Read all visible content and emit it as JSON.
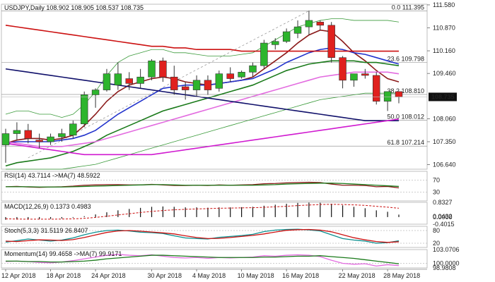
{
  "chart_data": [
    {
      "panel": "price",
      "type": "candlestick",
      "title": "USDJPY,Daily  108.902 108.905 108.537 108.735",
      "y_ticks": [
        "111.580",
        "110.870",
        "110.160",
        "109.460",
        "108.735",
        "108.060",
        "107.350",
        "106.640"
      ],
      "ylim": [
        106.5,
        111.6
      ],
      "current_price_label": "108.735",
      "current_price": 108.735,
      "fib_levels": [
        {
          "label": "0.0 111.395",
          "value": 111.395
        },
        {
          "label": "23.6 109.798",
          "value": 109.798
        },
        {
          "label": "38.2 108.810",
          "value": 108.81
        },
        {
          "label": "50.0 108.012",
          "value": 108.012
        },
        {
          "label": "61.8 107.214",
          "value": 107.214
        }
      ],
      "x_labels": [
        "12 Apr 2018",
        "18 Apr 2018",
        "24 Apr 2018",
        "30 Apr 2018",
        "4 May 2018",
        "10 May 2018",
        "16 May 2018",
        "22 May 2018",
        "28 May 2018"
      ],
      "candles": [
        {
          "o": 107.25,
          "h": 107.75,
          "l": 106.7,
          "c": 107.6
        },
        {
          "o": 107.6,
          "h": 107.95,
          "l": 107.4,
          "c": 107.7
        },
        {
          "o": 107.7,
          "h": 107.9,
          "l": 107.3,
          "c": 107.45
        },
        {
          "o": 107.4,
          "h": 107.6,
          "l": 107.15,
          "c": 107.35
        },
        {
          "o": 107.35,
          "h": 107.6,
          "l": 107.25,
          "c": 107.5
        },
        {
          "o": 107.5,
          "h": 107.75,
          "l": 107.35,
          "c": 107.6
        },
        {
          "o": 107.55,
          "h": 108.0,
          "l": 107.45,
          "c": 107.9
        },
        {
          "o": 107.9,
          "h": 108.9,
          "l": 107.8,
          "c": 108.8
        },
        {
          "o": 108.8,
          "h": 109.0,
          "l": 108.4,
          "c": 108.95
        },
        {
          "o": 108.95,
          "h": 109.6,
          "l": 108.9,
          "c": 109.45
        },
        {
          "o": 109.1,
          "h": 109.8,
          "l": 108.95,
          "c": 109.45
        },
        {
          "o": 109.3,
          "h": 109.5,
          "l": 108.95,
          "c": 109.15
        },
        {
          "o": 109.15,
          "h": 109.6,
          "l": 109.0,
          "c": 109.35
        },
        {
          "o": 109.35,
          "h": 109.9,
          "l": 109.25,
          "c": 109.85
        },
        {
          "o": 109.85,
          "h": 109.95,
          "l": 109.2,
          "c": 109.35
        },
        {
          "o": 109.35,
          "h": 109.7,
          "l": 108.8,
          "c": 108.95
        },
        {
          "o": 109.05,
          "h": 109.2,
          "l": 108.65,
          "c": 108.95
        },
        {
          "o": 108.95,
          "h": 109.4,
          "l": 108.75,
          "c": 109.25
        },
        {
          "o": 109.25,
          "h": 109.4,
          "l": 108.8,
          "c": 108.95
        },
        {
          "o": 109.0,
          "h": 109.55,
          "l": 108.9,
          "c": 109.45
        },
        {
          "o": 109.45,
          "h": 109.65,
          "l": 109.2,
          "c": 109.3
        },
        {
          "o": 109.35,
          "h": 109.55,
          "l": 109.3,
          "c": 109.5
        },
        {
          "o": 109.5,
          "h": 109.8,
          "l": 109.35,
          "c": 109.7
        },
        {
          "o": 109.7,
          "h": 110.5,
          "l": 109.6,
          "c": 110.4
        },
        {
          "o": 110.35,
          "h": 110.55,
          "l": 110.2,
          "c": 110.45
        },
        {
          "o": 110.45,
          "h": 110.85,
          "l": 110.4,
          "c": 110.75
        },
        {
          "o": 110.7,
          "h": 111.1,
          "l": 110.55,
          "c": 110.9
        },
        {
          "o": 110.9,
          "h": 111.4,
          "l": 110.65,
          "c": 111.1
        },
        {
          "o": 111.05,
          "h": 111.1,
          "l": 110.8,
          "c": 110.95
        },
        {
          "o": 110.95,
          "h": 111.05,
          "l": 109.8,
          "c": 109.95
        },
        {
          "o": 109.95,
          "h": 110.0,
          "l": 109.0,
          "c": 109.25
        },
        {
          "o": 109.25,
          "h": 109.45,
          "l": 109.05,
          "c": 109.45
        },
        {
          "o": 109.45,
          "h": 109.6,
          "l": 109.3,
          "c": 109.4
        },
        {
          "o": 109.4,
          "h": 109.5,
          "l": 108.5,
          "c": 108.6
        },
        {
          "o": 108.6,
          "h": 108.9,
          "l": 108.3,
          "c": 108.9
        },
        {
          "o": 108.9,
          "h": 108.905,
          "l": 108.537,
          "c": 108.735
        }
      ],
      "moving_averages": [
        {
          "color": "#8b1a1a",
          "values": [
            107.3,
            107.4,
            107.45,
            107.45,
            107.4,
            107.45,
            107.55,
            107.85,
            108.2,
            108.6,
            108.9,
            109.1,
            109.2,
            109.3,
            109.35,
            109.3,
            109.2,
            109.15,
            109.1,
            109.15,
            109.2,
            109.25,
            109.35,
            109.6,
            109.85,
            110.1,
            110.4,
            110.65,
            110.8,
            110.75,
            110.45,
            110.1,
            109.85,
            109.55,
            109.3,
            109.2
          ]
        },
        {
          "color": "#2233cc",
          "values": [
            107.3,
            107.35,
            107.35,
            107.35,
            107.35,
            107.4,
            107.45,
            107.55,
            107.7,
            107.95,
            108.2,
            108.4,
            108.6,
            108.8,
            109.0,
            109.05,
            109.1,
            109.1,
            109.1,
            109.15,
            109.2,
            109.25,
            109.3,
            109.45,
            109.6,
            109.8,
            109.95,
            110.1,
            110.2,
            110.25,
            110.2,
            110.1,
            110.05,
            109.95,
            109.85,
            109.75
          ]
        },
        {
          "color": "#1a7a1a",
          "values": [
            106.6,
            106.7,
            106.75,
            106.8,
            106.85,
            106.95,
            107.05,
            107.2,
            107.35,
            107.55,
            107.7,
            107.85,
            108.0,
            108.15,
            108.3,
            108.4,
            108.5,
            108.6,
            108.7,
            108.8,
            108.9,
            109.0,
            109.1,
            109.25,
            109.4,
            109.55,
            109.65,
            109.75,
            109.8,
            109.85,
            109.85,
            109.85,
            109.8,
            109.8,
            109.75,
            109.7
          ]
        },
        {
          "color": "#e36ce0",
          "values": [
            107.35,
            107.3,
            107.25,
            107.2,
            107.2,
            107.2,
            107.25,
            107.3,
            107.35,
            107.45,
            107.55,
            107.65,
            107.75,
            107.85,
            107.95,
            108.05,
            108.15,
            108.25,
            108.35,
            108.45,
            108.55,
            108.65,
            108.75,
            108.85,
            108.95,
            109.05,
            109.15,
            109.25,
            109.35,
            109.4,
            109.45,
            109.5,
            109.5,
            109.5,
            109.5,
            109.45
          ]
        },
        {
          "color": "#cc1111",
          "values": [
            110.95,
            110.9,
            110.85,
            110.8,
            110.75,
            110.7,
            110.65,
            110.6,
            110.55,
            110.5,
            110.45,
            110.4,
            110.35,
            110.3,
            110.3,
            110.25,
            110.25,
            110.2,
            110.2,
            110.2,
            110.2,
            110.15,
            110.15,
            110.15,
            110.15,
            110.15,
            110.15,
            110.15,
            110.15,
            110.15,
            110.15,
            110.15,
            110.15,
            110.15,
            110.15,
            110.15
          ]
        },
        {
          "color": "#11116b",
          "values": [
            109.6,
            109.55,
            109.5,
            109.45,
            109.4,
            109.35,
            109.3,
            109.25,
            109.2,
            109.15,
            109.1,
            109.05,
            109.0,
            108.95,
            108.9,
            108.85,
            108.8,
            108.75,
            108.7,
            108.65,
            108.6,
            108.55,
            108.5,
            108.45,
            108.4,
            108.35,
            108.3,
            108.25,
            108.2,
            108.15,
            108.1,
            108.05,
            108.0,
            108.0,
            108.0,
            108.0
          ]
        },
        {
          "color": "#d01ad0",
          "values": [
            107.3,
            107.25,
            107.2,
            107.15,
            107.1,
            107.05,
            107.0,
            106.95,
            106.95,
            106.95,
            106.95,
            106.95,
            106.95,
            106.95,
            107.0,
            107.05,
            107.1,
            107.15,
            107.2,
            107.25,
            107.3,
            107.35,
            107.4,
            107.45,
            107.5,
            107.55,
            107.6,
            107.65,
            107.7,
            107.75,
            107.8,
            107.85,
            107.9,
            107.95,
            108.0,
            108.05
          ]
        }
      ],
      "bollinger": {
        "color": "#3a9a3a",
        "upper": [
          108.2,
          108.3,
          108.3,
          108.2,
          108.2,
          108.1,
          108.2,
          108.5,
          108.9,
          109.4,
          109.8,
          110.0,
          110.1,
          110.2,
          110.2,
          110.1,
          110.1,
          110.05,
          110.0,
          110.0,
          110.0,
          110.05,
          110.1,
          110.3,
          110.5,
          110.7,
          110.9,
          111.0,
          111.1,
          111.15,
          111.15,
          111.1,
          111.1,
          111.1,
          111.1,
          111.05
        ],
        "lower": [
          106.5,
          106.5,
          106.5,
          106.5,
          106.5,
          106.5,
          106.55,
          106.6,
          106.65,
          106.75,
          106.85,
          106.95,
          107.05,
          107.15,
          107.25,
          107.35,
          107.45,
          107.55,
          107.65,
          107.75,
          107.85,
          107.95,
          108.05,
          108.15,
          108.25,
          108.35,
          108.45,
          108.55,
          108.65,
          108.7,
          108.75,
          108.8,
          108.85,
          108.85,
          108.85,
          108.85
        ]
      }
    },
    {
      "panel": "rsi",
      "type": "line",
      "title": "RSI(14) 43.7114  ->MA(7) 48.5922",
      "y_ticks": [
        "70",
        "30"
      ],
      "ylim": [
        0,
        100
      ],
      "levels": [
        70,
        30
      ],
      "series": [
        {
          "color": "#8b1a1a",
          "values": [
            48,
            49,
            47,
            46,
            47,
            48,
            50,
            53,
            54,
            55,
            55,
            54,
            54,
            56,
            54,
            52,
            52,
            53,
            52,
            54,
            53,
            54,
            55,
            58,
            59,
            61,
            62,
            63,
            62,
            57,
            53,
            53,
            52,
            48,
            49,
            44
          ]
        },
        {
          "color": "#1a7a1a",
          "values": [
            48,
            48,
            48,
            47,
            47,
            47,
            48,
            49,
            50,
            51,
            52,
            53,
            54,
            55,
            55,
            54,
            53,
            53,
            53,
            53,
            53,
            53,
            53,
            54,
            55,
            57,
            58,
            59,
            60,
            60,
            59,
            57,
            55,
            53,
            51,
            49
          ]
        }
      ]
    },
    {
      "panel": "macd",
      "type": "bar",
      "title": "MACD(12,26,9) 0.1373 0.4983",
      "y_ticks": [
        "0.8327",
        "0.0432",
        "0.0000",
        "-0.4015"
      ],
      "ylim": [
        -0.4015,
        0.8327
      ],
      "histogram": {
        "color": "#111111",
        "values": [
          -0.15,
          -0.14,
          -0.13,
          -0.12,
          -0.1,
          -0.08,
          -0.04,
          0.05,
          0.15,
          0.27,
          0.38,
          0.46,
          0.52,
          0.58,
          0.6,
          0.58,
          0.55,
          0.55,
          0.53,
          0.55,
          0.55,
          0.56,
          0.58,
          0.64,
          0.7,
          0.75,
          0.8,
          0.82,
          0.81,
          0.75,
          0.66,
          0.58,
          0.5,
          0.38,
          0.3,
          0.14
        ]
      },
      "signal": {
        "color": "#cc1111",
        "values": [
          -0.1,
          -0.11,
          -0.12,
          -0.12,
          -0.12,
          -0.11,
          -0.1,
          -0.07,
          -0.02,
          0.05,
          0.12,
          0.19,
          0.26,
          0.32,
          0.37,
          0.41,
          0.44,
          0.46,
          0.48,
          0.5,
          0.51,
          0.52,
          0.53,
          0.55,
          0.58,
          0.61,
          0.65,
          0.68,
          0.71,
          0.72,
          0.71,
          0.69,
          0.66,
          0.61,
          0.56,
          0.5
        ]
      }
    },
    {
      "panel": "stochastic",
      "type": "line",
      "title": "Stoch(5,3,3) 31.5119 26.8407",
      "y_ticks": [
        "80",
        "20"
      ],
      "ylim": [
        0,
        100
      ],
      "levels": [
        80,
        20
      ],
      "series": [
        {
          "color": "#0a8f8f",
          "values": [
            25,
            32,
            40,
            35,
            30,
            35,
            45,
            60,
            72,
            80,
            82,
            78,
            72,
            70,
            66,
            55,
            45,
            42,
            40,
            48,
            52,
            56,
            62,
            75,
            82,
            85,
            86,
            83,
            78,
            60,
            42,
            35,
            30,
            20,
            23,
            31.5
          ]
        },
        {
          "color": "#cc1111",
          "values": [
            30,
            28,
            32,
            36,
            35,
            33,
            37,
            47,
            59,
            71,
            78,
            80,
            77,
            73,
            69,
            64,
            55,
            47,
            42,
            43,
            47,
            52,
            57,
            64,
            73,
            81,
            84,
            85,
            82,
            74,
            60,
            46,
            36,
            28,
            24,
            26.8
          ]
        }
      ]
    },
    {
      "panel": "momentum",
      "type": "line",
      "title": "Momentum(14) 99.4658  ->MA(7) 99.9171",
      "y_ticks": [
        "103.0706",
        "100.0000",
        "98.9808"
      ],
      "ylim": [
        98.9808,
        103.0706
      ],
      "levels": [
        100
      ],
      "series": [
        {
          "color": "#e36ce0",
          "values": [
            100.4,
            100.5,
            100.4,
            100.2,
            100.1,
            100.3,
            100.6,
            101.0,
            101.4,
            101.8,
            102.0,
            101.8,
            101.7,
            101.9,
            101.6,
            101.3,
            101.2,
            101.3,
            101.1,
            101.3,
            101.2,
            101.3,
            101.4,
            101.7,
            101.6,
            101.8,
            101.9,
            101.8,
            101.5,
            100.7,
            100.0,
            99.8,
            99.9,
            99.4,
            99.7,
            99.5
          ]
        },
        {
          "color": "#1a7a1a",
          "values": [
            100.5,
            100.5,
            100.4,
            100.4,
            100.3,
            100.3,
            100.4,
            100.5,
            100.7,
            101.0,
            101.2,
            101.4,
            101.6,
            101.8,
            101.8,
            101.7,
            101.6,
            101.5,
            101.4,
            101.3,
            101.3,
            101.3,
            101.3,
            101.4,
            101.4,
            101.5,
            101.6,
            101.6,
            101.7,
            101.5,
            101.3,
            101.1,
            100.8,
            100.5,
            100.2,
            99.9
          ]
        }
      ]
    }
  ],
  "colors": {
    "bull": "#2db52d",
    "bear": "#e0211e",
    "grid": "#d8d8d8",
    "fib": "#9a9a9a",
    "price_box": "#111111"
  }
}
